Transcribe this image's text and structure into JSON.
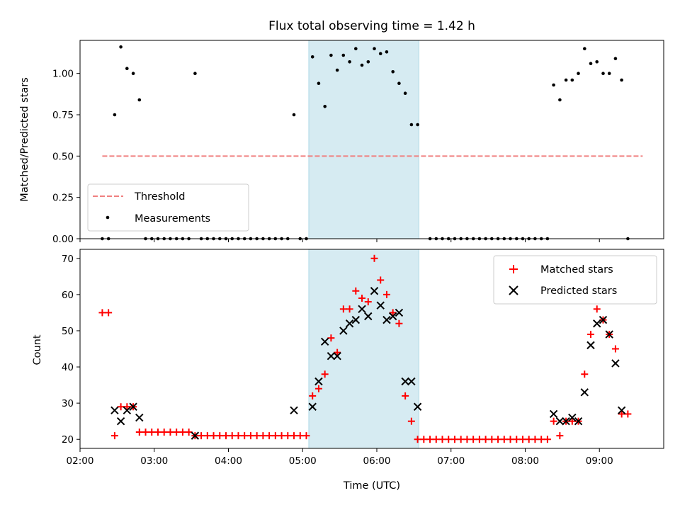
{
  "chart_data": [
    {
      "type": "scatter",
      "title": "Flux total observing time = 1.42 h",
      "xlabel": "",
      "ylabel": "Matched/Predicted stars",
      "x_unit": "time of day (UTC)",
      "xlim": [
        "02:00",
        "09:52"
      ],
      "ylim": [
        0,
        1.2
      ],
      "yticks": [
        0.0,
        0.25,
        0.5,
        0.75,
        1.0
      ],
      "ytick_labels": [
        "0.00",
        "0.25",
        "0.50",
        "0.75",
        "1.00"
      ],
      "grid": false,
      "legend_position": "lower-left",
      "highlight_band": {
        "x_start": "05:05",
        "x_end": "06:34",
        "color": "#add8e6"
      },
      "threshold": {
        "name": "Threshold",
        "value": 0.5,
        "x_start": "02:18",
        "x_end": "09:35",
        "color": "#f08080",
        "style": "dashed"
      },
      "series": [
        {
          "name": "Measurements",
          "marker": "dot",
          "color": "#000000",
          "points": [
            [
              "02:18",
              0.0
            ],
            [
              "02:23",
              0.0
            ],
            [
              "02:28",
              0.75
            ],
            [
              "02:33",
              1.16
            ],
            [
              "02:38",
              1.03
            ],
            [
              "02:43",
              1.0
            ],
            [
              "02:48",
              0.84
            ],
            [
              "02:53",
              0.0
            ],
            [
              "02:58",
              0.0
            ],
            [
              "03:03",
              0.0
            ],
            [
              "03:08",
              0.0
            ],
            [
              "03:13",
              0.0
            ],
            [
              "03:18",
              0.0
            ],
            [
              "03:23",
              0.0
            ],
            [
              "03:28",
              0.0
            ],
            [
              "03:33",
              1.0
            ],
            [
              "03:38",
              0.0
            ],
            [
              "03:43",
              0.0
            ],
            [
              "03:48",
              0.0
            ],
            [
              "03:53",
              0.0
            ],
            [
              "03:58",
              0.0
            ],
            [
              "04:03",
              0.0
            ],
            [
              "04:08",
              0.0
            ],
            [
              "04:13",
              0.0
            ],
            [
              "04:18",
              0.0
            ],
            [
              "04:23",
              0.0
            ],
            [
              "04:28",
              0.0
            ],
            [
              "04:33",
              0.0
            ],
            [
              "04:38",
              0.0
            ],
            [
              "04:43",
              0.0
            ],
            [
              "04:48",
              0.0
            ],
            [
              "04:53",
              0.75
            ],
            [
              "04:58",
              0.0
            ],
            [
              "05:03",
              0.0
            ],
            [
              "05:08",
              1.1
            ],
            [
              "05:13",
              0.94
            ],
            [
              "05:18",
              0.8
            ],
            [
              "05:23",
              1.11
            ],
            [
              "05:28",
              1.02
            ],
            [
              "05:33",
              1.11
            ],
            [
              "05:38",
              1.07
            ],
            [
              "05:43",
              1.15
            ],
            [
              "05:48",
              1.05
            ],
            [
              "05:53",
              1.07
            ],
            [
              "05:58",
              1.15
            ],
            [
              "06:03",
              1.12
            ],
            [
              "06:08",
              1.13
            ],
            [
              "06:13",
              1.01
            ],
            [
              "06:18",
              0.94
            ],
            [
              "06:23",
              0.88
            ],
            [
              "06:28",
              0.69
            ],
            [
              "06:33",
              0.69
            ],
            [
              "06:43",
              0.0
            ],
            [
              "06:48",
              0.0
            ],
            [
              "06:53",
              0.0
            ],
            [
              "06:58",
              0.0
            ],
            [
              "07:03",
              0.0
            ],
            [
              "07:08",
              0.0
            ],
            [
              "07:13",
              0.0
            ],
            [
              "07:18",
              0.0
            ],
            [
              "07:23",
              0.0
            ],
            [
              "07:28",
              0.0
            ],
            [
              "07:33",
              0.0
            ],
            [
              "07:38",
              0.0
            ],
            [
              "07:43",
              0.0
            ],
            [
              "07:48",
              0.0
            ],
            [
              "07:53",
              0.0
            ],
            [
              "07:58",
              0.0
            ],
            [
              "08:03",
              0.0
            ],
            [
              "08:08",
              0.0
            ],
            [
              "08:13",
              0.0
            ],
            [
              "08:18",
              0.0
            ],
            [
              "08:23",
              0.93
            ],
            [
              "08:28",
              0.84
            ],
            [
              "08:33",
              0.96
            ],
            [
              "08:38",
              0.96
            ],
            [
              "08:43",
              1.0
            ],
            [
              "08:48",
              1.15
            ],
            [
              "08:53",
              1.06
            ],
            [
              "08:58",
              1.07
            ],
            [
              "09:03",
              1.0
            ],
            [
              "09:08",
              1.0
            ],
            [
              "09:13",
              1.09
            ],
            [
              "09:18",
              0.96
            ],
            [
              "09:23",
              0.0
            ]
          ]
        }
      ]
    },
    {
      "type": "scatter",
      "title": "",
      "xlabel": "Time (UTC)",
      "ylabel": "Count",
      "x_unit": "time of day (UTC)",
      "xlim": [
        "02:00",
        "09:52"
      ],
      "ylim": [
        17.5,
        72.5
      ],
      "xticks": [
        "02:00",
        "03:00",
        "04:00",
        "05:00",
        "06:00",
        "07:00",
        "08:00",
        "09:00"
      ],
      "yticks": [
        20,
        30,
        40,
        50,
        60,
        70
      ],
      "ytick_labels": [
        "20",
        "30",
        "40",
        "50",
        "60",
        "70"
      ],
      "grid": false,
      "legend_position": "upper-right",
      "highlight_band": {
        "x_start": "05:05",
        "x_end": "06:34",
        "color": "#add8e6"
      },
      "series": [
        {
          "name": "Matched stars",
          "marker": "plus",
          "color": "#ff0000",
          "points": [
            [
              "02:18",
              55
            ],
            [
              "02:23",
              55
            ],
            [
              "02:28",
              21
            ],
            [
              "02:33",
              29
            ],
            [
              "02:38",
              29
            ],
            [
              "02:43",
              29
            ],
            [
              "02:48",
              22
            ],
            [
              "02:53",
              22
            ],
            [
              "02:58",
              22
            ],
            [
              "03:03",
              22
            ],
            [
              "03:08",
              22
            ],
            [
              "03:13",
              22
            ],
            [
              "03:18",
              22
            ],
            [
              "03:23",
              22
            ],
            [
              "03:28",
              22
            ],
            [
              "03:33",
              21
            ],
            [
              "03:38",
              21
            ],
            [
              "03:43",
              21
            ],
            [
              "03:48",
              21
            ],
            [
              "03:53",
              21
            ],
            [
              "03:58",
              21
            ],
            [
              "04:03",
              21
            ],
            [
              "04:08",
              21
            ],
            [
              "04:13",
              21
            ],
            [
              "04:18",
              21
            ],
            [
              "04:23",
              21
            ],
            [
              "04:28",
              21
            ],
            [
              "04:33",
              21
            ],
            [
              "04:38",
              21
            ],
            [
              "04:43",
              21
            ],
            [
              "04:48",
              21
            ],
            [
              "04:53",
              21
            ],
            [
              "04:58",
              21
            ],
            [
              "05:03",
              21
            ],
            [
              "05:08",
              32
            ],
            [
              "05:13",
              34
            ],
            [
              "05:18",
              38
            ],
            [
              "05:23",
              48
            ],
            [
              "05:28",
              44
            ],
            [
              "05:33",
              56
            ],
            [
              "05:38",
              56
            ],
            [
              "05:43",
              61
            ],
            [
              "05:48",
              59
            ],
            [
              "05:53",
              58
            ],
            [
              "05:58",
              70
            ],
            [
              "06:03",
              64
            ],
            [
              "06:08",
              60
            ],
            [
              "06:13",
              55
            ],
            [
              "06:18",
              52
            ],
            [
              "06:23",
              32
            ],
            [
              "06:28",
              25
            ],
            [
              "06:33",
              20
            ],
            [
              "06:38",
              20
            ],
            [
              "06:43",
              20
            ],
            [
              "06:48",
              20
            ],
            [
              "06:53",
              20
            ],
            [
              "06:58",
              20
            ],
            [
              "07:03",
              20
            ],
            [
              "07:08",
              20
            ],
            [
              "07:13",
              20
            ],
            [
              "07:18",
              20
            ],
            [
              "07:23",
              20
            ],
            [
              "07:28",
              20
            ],
            [
              "07:33",
              20
            ],
            [
              "07:38",
              20
            ],
            [
              "07:43",
              20
            ],
            [
              "07:48",
              20
            ],
            [
              "07:53",
              20
            ],
            [
              "07:58",
              20
            ],
            [
              "08:03",
              20
            ],
            [
              "08:08",
              20
            ],
            [
              "08:13",
              20
            ],
            [
              "08:18",
              20
            ],
            [
              "08:23",
              25
            ],
            [
              "08:28",
              21
            ],
            [
              "08:33",
              25
            ],
            [
              "08:38",
              25
            ],
            [
              "08:43",
              25
            ],
            [
              "08:48",
              38
            ],
            [
              "08:53",
              49
            ],
            [
              "08:58",
              56
            ],
            [
              "09:03",
              53
            ],
            [
              "09:08",
              49
            ],
            [
              "09:13",
              45
            ],
            [
              "09:18",
              27
            ],
            [
              "09:23",
              27
            ]
          ]
        },
        {
          "name": "Predicted stars",
          "marker": "x",
          "color": "#000000",
          "points": [
            [
              "02:28",
              28
            ],
            [
              "02:33",
              25
            ],
            [
              "02:38",
              28
            ],
            [
              "02:43",
              29
            ],
            [
              "02:48",
              26
            ],
            [
              "03:33",
              21
            ],
            [
              "04:53",
              28
            ],
            [
              "05:08",
              29
            ],
            [
              "05:13",
              36
            ],
            [
              "05:18",
              47
            ],
            [
              "05:23",
              43
            ],
            [
              "05:28",
              43
            ],
            [
              "05:33",
              50
            ],
            [
              "05:38",
              52
            ],
            [
              "05:43",
              53
            ],
            [
              "05:48",
              56
            ],
            [
              "05:53",
              54
            ],
            [
              "05:58",
              61
            ],
            [
              "06:03",
              57
            ],
            [
              "06:08",
              53
            ],
            [
              "06:13",
              54
            ],
            [
              "06:18",
              55
            ],
            [
              "06:23",
              36
            ],
            [
              "06:28",
              36
            ],
            [
              "06:33",
              29
            ],
            [
              "08:23",
              27
            ],
            [
              "08:28",
              25
            ],
            [
              "08:33",
              25
            ],
            [
              "08:38",
              26
            ],
            [
              "08:43",
              25
            ],
            [
              "08:48",
              33
            ],
            [
              "08:53",
              46
            ],
            [
              "08:58",
              52
            ],
            [
              "09:03",
              53
            ],
            [
              "09:08",
              49
            ],
            [
              "09:13",
              41
            ],
            [
              "09:18",
              28
            ]
          ]
        }
      ]
    }
  ]
}
